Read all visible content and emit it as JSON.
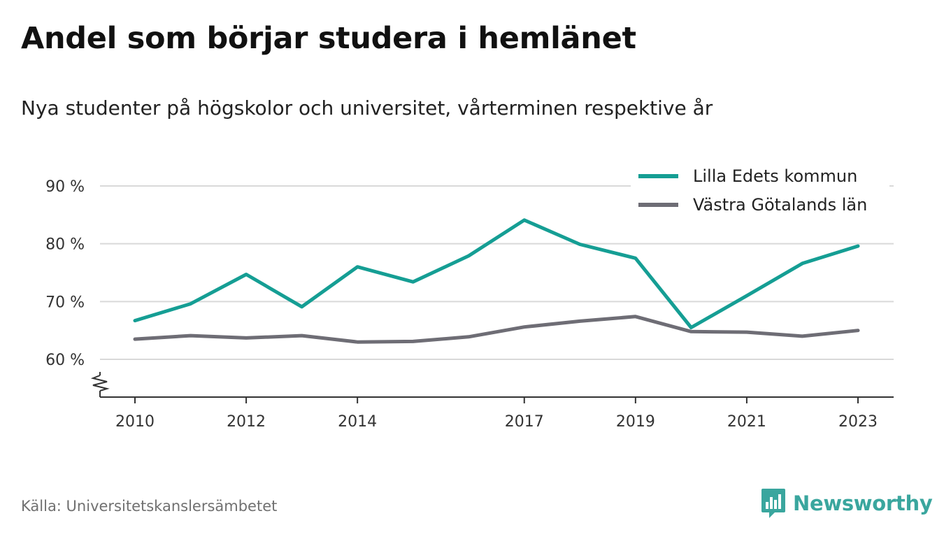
{
  "header": {
    "title": "Andel som börjar studera i hemlänet",
    "subtitle": "Nya studenter på högskolor och universitet, vårterminen respektive år"
  },
  "footer": {
    "source": "Källa: Universitetskanslersämbetet",
    "brand": "Newsworthy",
    "brand_icon": "bar-chart-logo-icon"
  },
  "colors": {
    "series_1": "#159e94",
    "series_2": "#6e6d75",
    "grid": "#d9d9d9",
    "axis": "#333333",
    "brand": "#3aa69e"
  },
  "chart_data": {
    "type": "line",
    "x": [
      2010,
      2011,
      2012,
      2013,
      2014,
      2015,
      2016,
      2017,
      2018,
      2019,
      2020,
      2021,
      2022,
      2023
    ],
    "x_tick_labels": [
      "2010",
      "2012",
      "2014",
      "2017",
      "2019",
      "2021",
      "2023"
    ],
    "y_tick_labels": [
      "60 %",
      "70 %",
      "80 %",
      "90 %"
    ],
    "y_ticks": [
      60,
      70,
      80,
      90
    ],
    "ylim": [
      54,
      91
    ],
    "y_axis_break": true,
    "grid": true,
    "legend_position": "top-right",
    "series": [
      {
        "name": "Lilla Edets kommun",
        "values": [
          66.7,
          69.6,
          74.7,
          69.1,
          76.0,
          73.4,
          77.9,
          84.1,
          79.9,
          77.5,
          65.5,
          71.0,
          76.6,
          79.6
        ]
      },
      {
        "name": "Västra Götalands län",
        "values": [
          63.5,
          64.1,
          63.7,
          64.1,
          63.0,
          63.1,
          63.9,
          65.6,
          66.6,
          67.4,
          64.8,
          64.7,
          64.0,
          65.0
        ]
      }
    ]
  }
}
